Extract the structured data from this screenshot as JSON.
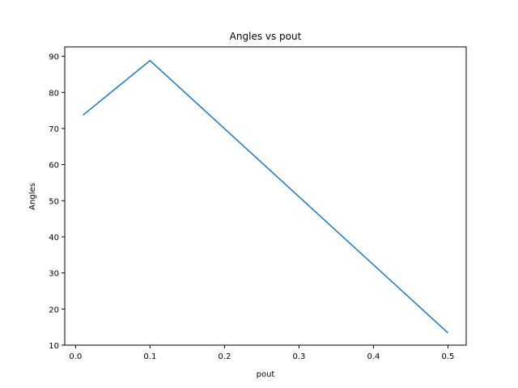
{
  "chart_data": {
    "type": "line",
    "title": "Angles vs pout",
    "xlabel": "pout",
    "ylabel": "Angles",
    "xlim": [
      -0.0145,
      0.5245
    ],
    "ylim": [
      10.0,
      92.6
    ],
    "x_ticks": [
      0.0,
      0.1,
      0.2,
      0.3,
      0.4,
      0.5
    ],
    "x_tick_labels": [
      "0.0",
      "0.1",
      "0.2",
      "0.3",
      "0.4",
      "0.5"
    ],
    "y_ticks": [
      10,
      20,
      30,
      40,
      50,
      60,
      70,
      80,
      90
    ],
    "y_tick_labels": [
      "10",
      "20",
      "30",
      "40",
      "50",
      "60",
      "70",
      "80",
      "90"
    ],
    "grid": false,
    "legend": "none",
    "series": [
      {
        "color": "#1f77b4",
        "x": [
          0.01,
          0.1,
          0.5
        ],
        "y": [
          73.7,
          88.8,
          13.4
        ]
      }
    ]
  }
}
